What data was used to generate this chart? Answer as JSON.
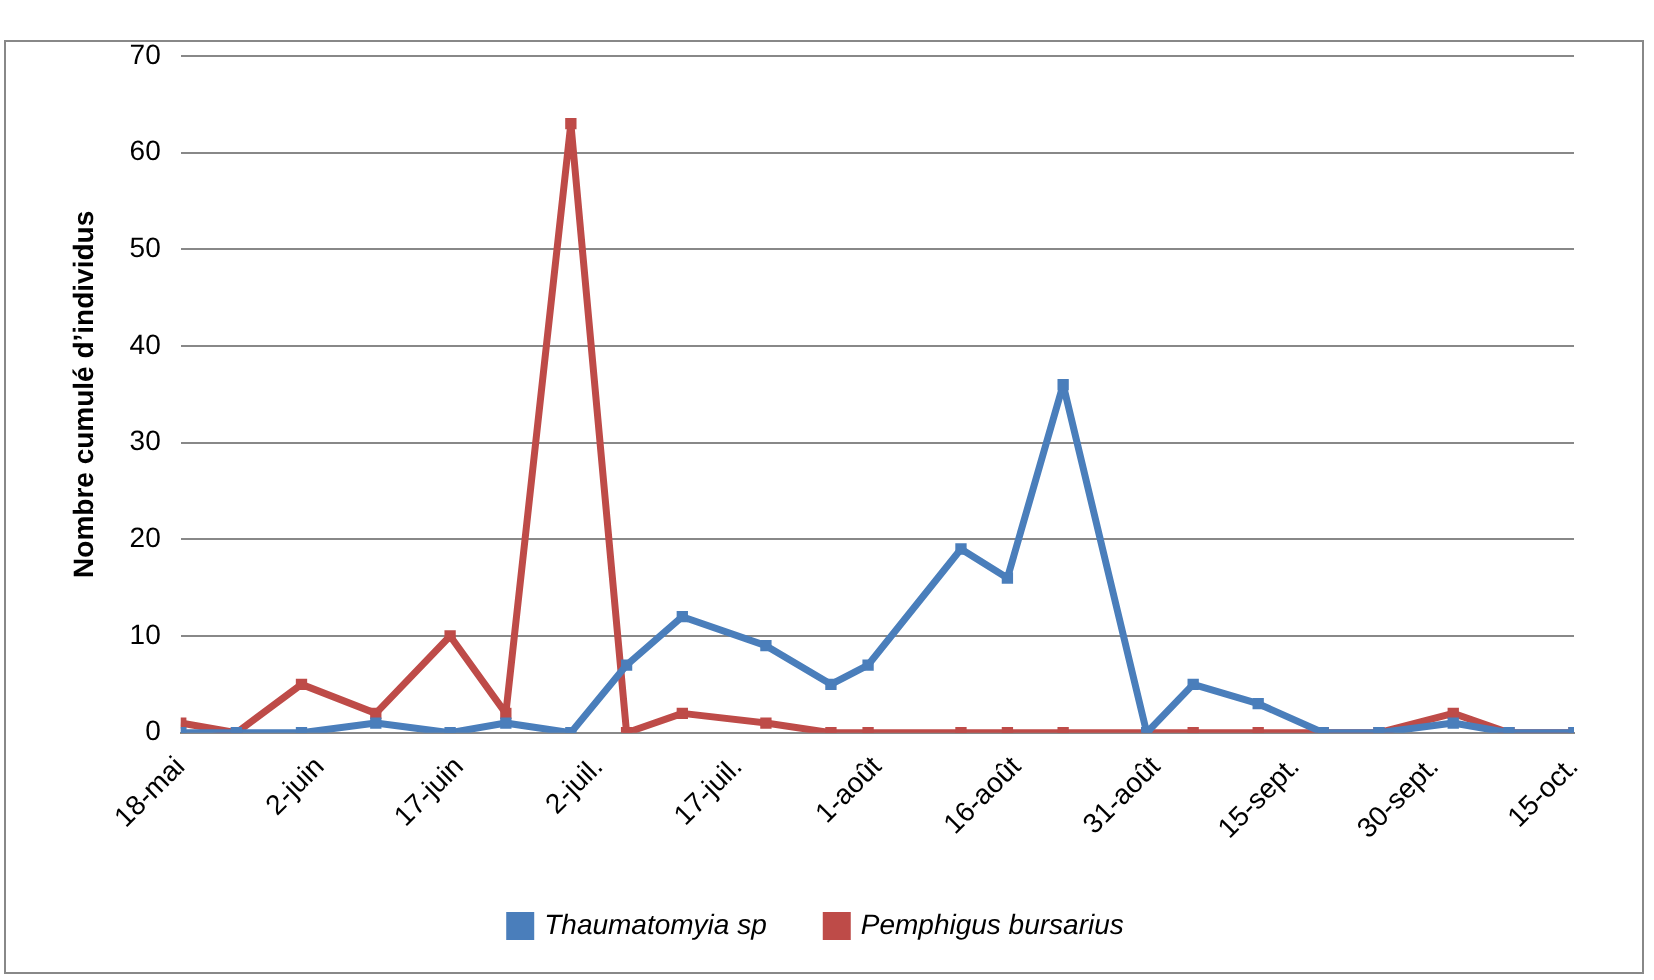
{
  "chart_data": {
    "type": "line",
    "ylabel": "Nombre cumulé d’individus",
    "x": [
      "--05-18",
      "--05-24",
      "--05-31",
      "--06-08",
      "--06-16",
      "--06-22",
      "--06-29",
      "--07-05",
      "--07-11",
      "--07-20",
      "--07-27",
      "--07-31",
      "--08-10",
      "--08-15",
      "--08-21",
      "--08-30",
      "--09-04",
      "--09-11",
      "--09-18",
      "--09-24",
      "--10-02",
      "--10-08",
      "--10-15"
    ],
    "series": [
      {
        "name": "Thaumatomyia sp",
        "color": "#4a7ebb",
        "values": [
          0,
          0,
          0,
          1,
          0,
          1,
          0,
          7,
          12,
          9,
          5,
          7,
          19,
          16,
          36,
          0,
          5,
          3,
          0,
          0,
          1,
          0,
          0
        ]
      },
      {
        "name": "Pemphigus bursarius",
        "color": "#be4b48",
        "values": [
          1,
          0,
          5,
          2,
          10,
          2,
          63,
          0,
          2,
          1,
          0,
          0,
          0,
          0,
          0,
          0,
          0,
          0,
          0,
          0,
          2,
          0,
          0
        ]
      }
    ],
    "xlim": [
      "--05-18",
      "--10-15"
    ],
    "xticks": [
      {
        "value": "--05-18",
        "label": "18-mai"
      },
      {
        "value": "--06-02",
        "label": "2-juin"
      },
      {
        "value": "--06-17",
        "label": "17-juin"
      },
      {
        "value": "--07-02",
        "label": "2-juil."
      },
      {
        "value": "--07-17",
        "label": "17-juil."
      },
      {
        "value": "--08-01",
        "label": "1-août"
      },
      {
        "value": "--08-16",
        "label": "16-août"
      },
      {
        "value": "--08-31",
        "label": "31-août"
      },
      {
        "value": "--09-15",
        "label": "15-sept."
      },
      {
        "value": "--09-30",
        "label": "30-sept."
      },
      {
        "value": "--10-15",
        "label": "15-oct."
      }
    ],
    "ylim": [
      0,
      70
    ],
    "yticks": [
      0,
      10,
      20,
      30,
      40,
      50,
      60,
      70
    ],
    "grid": "y",
    "legend": "bottom",
    "marker": "square",
    "line_style": "solid"
  }
}
